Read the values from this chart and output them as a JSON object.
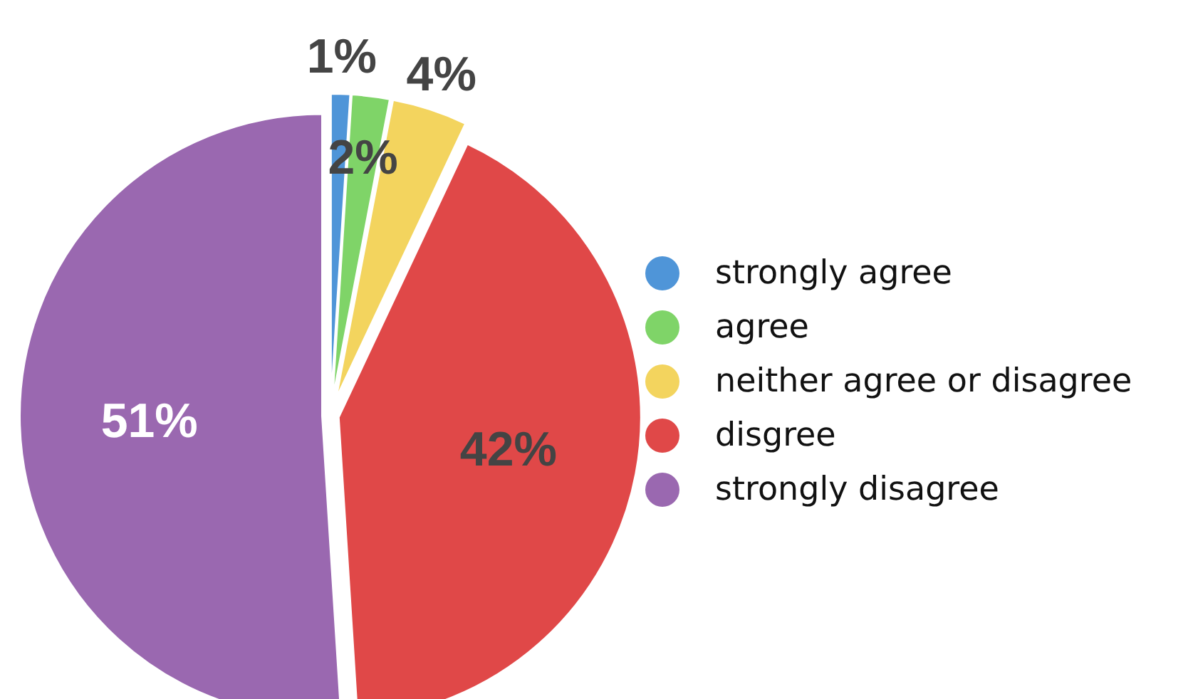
{
  "chart_data": {
    "type": "pie",
    "categories": [
      "strongly agree",
      "agree",
      "neither agree or disagree",
      "disgree",
      "strongly disagree"
    ],
    "values": [
      1,
      2,
      4,
      42,
      51
    ],
    "colors": [
      "#4f95d8",
      "#7fd468",
      "#f3d45e",
      "#e04848",
      "#9a68b0"
    ],
    "value_labels": [
      "1%",
      "2%",
      "4%",
      "42%",
      "51%"
    ],
    "legend": "right"
  }
}
